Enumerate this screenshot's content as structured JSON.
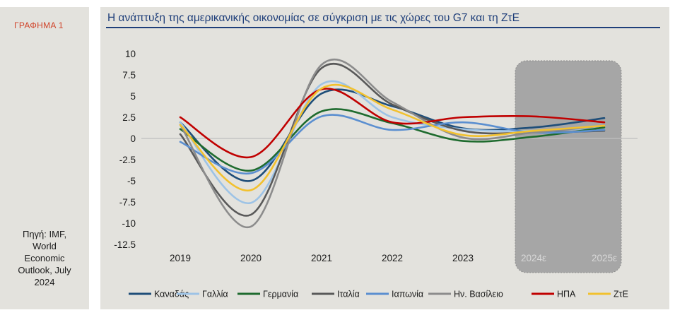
{
  "figure_label": "ΓΡΑΦΗΜΑ 1",
  "source_lines": [
    "Πηγή: IMF,",
    "World",
    "Economic",
    "Outlook, July",
    "2024"
  ],
  "chart_data": {
    "type": "line",
    "title": "Η ανάπτυξη της αμερικανικής οικονομίας σε σύγκριση με τις χώρες του G7 και τη ΖτΕ",
    "categories": [
      "2019",
      "2020",
      "2021",
      "2022",
      "2023",
      "2024ε",
      "2025ε"
    ],
    "ylim": [
      -12.5,
      10
    ],
    "yticks": [
      10,
      7.5,
      5,
      2.5,
      0,
      -2.5,
      -5,
      -7.5,
      -10,
      -12.5
    ],
    "ytick_labels": [
      "10",
      "7.5",
      "5",
      "2.5",
      "0",
      "-2.5",
      "-5",
      "-7.5",
      "-10",
      "-12.5"
    ],
    "forecast_period": [
      "2024ε",
      "2025ε"
    ],
    "legend_position": "bottom",
    "series": [
      {
        "name": "Καναδάς",
        "color": "#1f4e79",
        "values": [
          1.9,
          -5.0,
          5.3,
          3.8,
          1.2,
          1.3,
          2.4
        ]
      },
      {
        "name": "Γαλλία",
        "color": "#9dc3e6",
        "values": [
          1.9,
          -7.6,
          6.4,
          2.5,
          1.1,
          0.9,
          1.3
        ]
      },
      {
        "name": "Γερμανία",
        "color": "#1e6b2e",
        "values": [
          1.1,
          -3.8,
          3.2,
          1.8,
          -0.3,
          0.2,
          1.3
        ]
      },
      {
        "name": "Ιταλία",
        "color": "#595959",
        "values": [
          0.5,
          -9.0,
          8.3,
          4.0,
          0.9,
          0.7,
          0.9
        ]
      },
      {
        "name": "Ιαπωνία",
        "color": "#5b8fd0",
        "values": [
          -0.4,
          -4.1,
          2.6,
          1.0,
          1.9,
          0.7,
          1.0
        ]
      },
      {
        "name": "Ην. Βασίλειο",
        "color": "#8c8c8c",
        "values": [
          1.6,
          -10.4,
          8.7,
          4.3,
          0.1,
          0.7,
          1.5
        ]
      },
      {
        "name": "ΗΠΑ",
        "color": "#c00000",
        "values": [
          2.5,
          -2.2,
          5.8,
          1.9,
          2.5,
          2.6,
          1.9
        ]
      },
      {
        "name": "ΖτΕ",
        "color": "#f2c12e",
        "values": [
          1.6,
          -6.1,
          5.9,
          3.4,
          0.4,
          0.9,
          1.5
        ]
      }
    ]
  }
}
